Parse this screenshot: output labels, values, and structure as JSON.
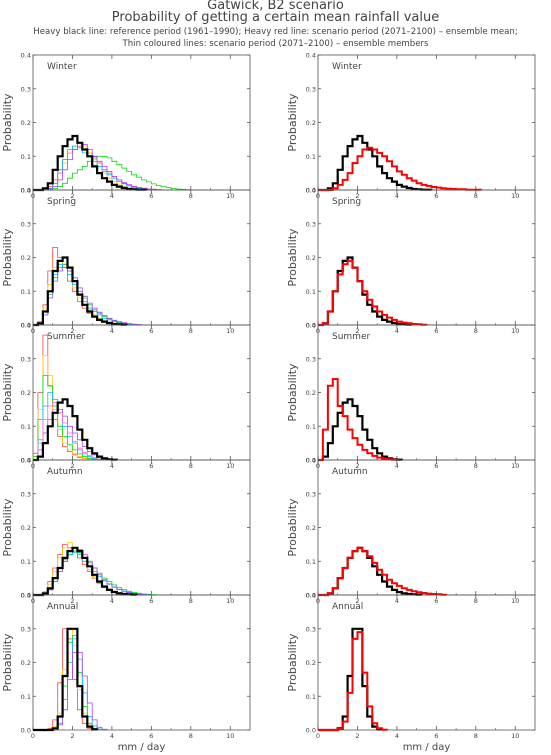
{
  "title": "Gatwick, B2 scenario",
  "subtitle": "Probability of getting a certain mean rainfall value",
  "legend_line1": "Heavy black line: reference period (1961–1990); Heavy red line: scenario period (2071–2100) – ensemble mean;",
  "legend_line2": "Thin coloured lines: scenario period (2071–2100) – ensemble members",
  "ylabel": "Probability",
  "xlabel": "mm / day",
  "colors": {
    "reference": "#000000",
    "ensemble_mean": "#ff0000",
    "members": [
      "#ff4040",
      "#ffcc00",
      "#00dd00",
      "#00bbff",
      "#aa44ff",
      "#ff66cc"
    ]
  },
  "chart_data": {
    "type": "step-histogram",
    "bin_width": 0.25,
    "x_start": 0,
    "xlim": [
      0,
      11
    ],
    "ylim": [
      0,
      0.4
    ],
    "xticks": [
      "0",
      "2",
      "4",
      "6",
      "8",
      "10"
    ],
    "yticks": [
      "0.0",
      "0.1",
      "0.2",
      "0.3",
      "0.4"
    ],
    "panels": [
      {
        "season": "Winter",
        "reference": [
          0,
          0,
          0.005,
          0.02,
          0.06,
          0.1,
          0.13,
          0.15,
          0.16,
          0.14,
          0.12,
          0.1,
          0.07,
          0.05,
          0.035,
          0.025,
          0.015,
          0.01,
          0.006,
          0.003,
          0.002,
          0.001,
          0.001
        ],
        "ensemble_mean": [
          0,
          0,
          0,
          0.005,
          0.015,
          0.03,
          0.05,
          0.08,
          0.1,
          0.12,
          0.125,
          0.12,
          0.11,
          0.1,
          0.085,
          0.07,
          0.055,
          0.045,
          0.035,
          0.028,
          0.02,
          0.015,
          0.012,
          0.009,
          0.007,
          0.005,
          0.004,
          0.003,
          0.002,
          0.002,
          0.001,
          0.001,
          0.001
        ],
        "members": [
          [
            0,
            0,
            0,
            0.01,
            0.03,
            0.06,
            0.09,
            0.11,
            0.12,
            0.13,
            0.12,
            0.11,
            0.1,
            0.08,
            0.06,
            0.05,
            0.04,
            0.03,
            0.02,
            0.015,
            0.01,
            0.007,
            0.005,
            0.003,
            0.002,
            0.001
          ],
          [
            0,
            0,
            0,
            0.005,
            0.02,
            0.05,
            0.08,
            0.11,
            0.13,
            0.14,
            0.13,
            0.11,
            0.09,
            0.07,
            0.05,
            0.035,
            0.025,
            0.015,
            0.01,
            0.006,
            0.004,
            0.002,
            0.001
          ],
          [
            0,
            0,
            0,
            0,
            0.005,
            0.01,
            0.02,
            0.035,
            0.05,
            0.06,
            0.07,
            0.085,
            0.095,
            0.1,
            0.1,
            0.095,
            0.085,
            0.075,
            0.065,
            0.055,
            0.045,
            0.038,
            0.03,
            0.024,
            0.018,
            0.013,
            0.01,
            0.007,
            0.005,
            0.003,
            0.002,
            0.001
          ],
          [
            0,
            0,
            0,
            0.005,
            0.02,
            0.05,
            0.09,
            0.12,
            0.13,
            0.125,
            0.11,
            0.1,
            0.085,
            0.07,
            0.055,
            0.045,
            0.035,
            0.025,
            0.018,
            0.012,
            0.008,
            0.005,
            0.003,
            0.002,
            0.001
          ],
          [
            0,
            0,
            0,
            0.003,
            0.01,
            0.03,
            0.06,
            0.09,
            0.12,
            0.14,
            0.135,
            0.12,
            0.1,
            0.085,
            0.07,
            0.055,
            0.04,
            0.03,
            0.022,
            0.016,
            0.011,
            0.007,
            0.005,
            0.003,
            0.002,
            0.001
          ]
        ]
      },
      {
        "season": "Spring",
        "reference": [
          0,
          0.005,
          0.04,
          0.1,
          0.16,
          0.19,
          0.2,
          0.17,
          0.13,
          0.09,
          0.06,
          0.04,
          0.025,
          0.015,
          0.01,
          0.006,
          0.003,
          0.002,
          0.001
        ],
        "ensemble_mean": [
          0,
          0.005,
          0.04,
          0.1,
          0.15,
          0.18,
          0.19,
          0.17,
          0.13,
          0.1,
          0.075,
          0.055,
          0.04,
          0.03,
          0.022,
          0.015,
          0.01,
          0.007,
          0.005,
          0.003,
          0.002,
          0.001
        ],
        "members": [
          [
            0,
            0.01,
            0.06,
            0.16,
            0.23,
            0.2,
            0.17,
            0.13,
            0.1,
            0.07,
            0.05,
            0.035,
            0.025,
            0.015,
            0.01,
            0.006,
            0.003,
            0.002,
            0.001
          ],
          [
            0,
            0.005,
            0.05,
            0.12,
            0.17,
            0.19,
            0.18,
            0.15,
            0.11,
            0.08,
            0.06,
            0.045,
            0.03,
            0.02,
            0.013,
            0.008,
            0.005,
            0.003,
            0.002,
            0.001
          ],
          [
            0,
            0.005,
            0.03,
            0.09,
            0.14,
            0.17,
            0.18,
            0.16,
            0.13,
            0.1,
            0.08,
            0.06,
            0.045,
            0.035,
            0.025,
            0.018,
            0.012,
            0.008,
            0.005,
            0.003,
            0.002,
            0.001
          ],
          [
            0,
            0.005,
            0.04,
            0.1,
            0.15,
            0.18,
            0.17,
            0.15,
            0.12,
            0.09,
            0.07,
            0.05,
            0.04,
            0.03,
            0.02,
            0.015,
            0.01,
            0.006,
            0.004,
            0.002,
            0.001
          ],
          [
            0,
            0.003,
            0.03,
            0.08,
            0.13,
            0.16,
            0.17,
            0.16,
            0.14,
            0.11,
            0.085,
            0.065,
            0.05,
            0.038,
            0.028,
            0.02,
            0.014,
            0.01,
            0.007,
            0.004,
            0.002,
            0.001
          ]
        ]
      },
      {
        "season": "Summer",
        "reference": [
          0,
          0.01,
          0.05,
          0.1,
          0.14,
          0.17,
          0.18,
          0.16,
          0.13,
          0.09,
          0.06,
          0.035,
          0.02,
          0.01,
          0.005,
          0.002,
          0.001
        ],
        "ensemble_mean": [
          0,
          0.09,
          0.22,
          0.24,
          0.16,
          0.13,
          0.09,
          0.065,
          0.045,
          0.03,
          0.02,
          0.012,
          0.007,
          0.004,
          0.002,
          0.001
        ],
        "members": [
          [
            0.02,
            0.2,
            0.37,
            0.22,
            0.12,
            0.07,
            0.04,
            0.025,
            0.015,
            0.008,
            0.004,
            0.002,
            0.001
          ],
          [
            0.01,
            0.15,
            0.31,
            0.25,
            0.15,
            0.09,
            0.05,
            0.03,
            0.018,
            0.01,
            0.005,
            0.002,
            0.001
          ],
          [
            0.01,
            0.12,
            0.25,
            0.22,
            0.16,
            0.1,
            0.07,
            0.045,
            0.03,
            0.018,
            0.01,
            0.005,
            0.002,
            0.001
          ],
          [
            0,
            0.06,
            0.16,
            0.2,
            0.18,
            0.14,
            0.1,
            0.07,
            0.05,
            0.03,
            0.018,
            0.01,
            0.005,
            0.002,
            0.001
          ],
          [
            0,
            0.03,
            0.08,
            0.12,
            0.14,
            0.15,
            0.13,
            0.1,
            0.08,
            0.06,
            0.04,
            0.025,
            0.015,
            0.008,
            0.004,
            0.002,
            0.001
          ],
          [
            0,
            0.05,
            0.12,
            0.16,
            0.17,
            0.14,
            0.11,
            0.08,
            0.055,
            0.035,
            0.022,
            0.013,
            0.007,
            0.003,
            0.001
          ]
        ]
      },
      {
        "season": "Autumn",
        "reference": [
          0,
          0,
          0.005,
          0.02,
          0.05,
          0.08,
          0.11,
          0.13,
          0.14,
          0.13,
          0.11,
          0.085,
          0.06,
          0.04,
          0.025,
          0.015,
          0.009,
          0.005,
          0.003,
          0.002,
          0.001
        ],
        "ensemble_mean": [
          0,
          0,
          0.005,
          0.02,
          0.05,
          0.08,
          0.11,
          0.13,
          0.14,
          0.13,
          0.115,
          0.095,
          0.075,
          0.06,
          0.045,
          0.035,
          0.027,
          0.02,
          0.015,
          0.011,
          0.008,
          0.006,
          0.004,
          0.003,
          0.002,
          0.001
        ],
        "members": [
          [
            0,
            0,
            0.01,
            0.04,
            0.08,
            0.12,
            0.15,
            0.14,
            0.13,
            0.11,
            0.09,
            0.07,
            0.05,
            0.035,
            0.025,
            0.017,
            0.011,
            0.007,
            0.004,
            0.002,
            0.001
          ],
          [
            0,
            0,
            0.01,
            0.03,
            0.07,
            0.11,
            0.14,
            0.155,
            0.14,
            0.12,
            0.1,
            0.075,
            0.055,
            0.04,
            0.028,
            0.018,
            0.011,
            0.006,
            0.003,
            0.002,
            0.001
          ],
          [
            0,
            0,
            0.003,
            0.015,
            0.04,
            0.07,
            0.1,
            0.12,
            0.13,
            0.125,
            0.11,
            0.095,
            0.08,
            0.065,
            0.05,
            0.04,
            0.03,
            0.022,
            0.016,
            0.011,
            0.008,
            0.005,
            0.003,
            0.002,
            0.001
          ],
          [
            0,
            0,
            0.005,
            0.02,
            0.05,
            0.08,
            0.105,
            0.12,
            0.125,
            0.12,
            0.1,
            0.085,
            0.07,
            0.055,
            0.042,
            0.032,
            0.024,
            0.017,
            0.012,
            0.008,
            0.005,
            0.003,
            0.002,
            0.001
          ],
          [
            0,
            0,
            0.003,
            0.015,
            0.04,
            0.07,
            0.1,
            0.13,
            0.14,
            0.135,
            0.12,
            0.1,
            0.08,
            0.06,
            0.045,
            0.033,
            0.023,
            0.016,
            0.011,
            0.007,
            0.004,
            0.002,
            0.001
          ]
        ]
      },
      {
        "season": "Annual",
        "reference": [
          0,
          0,
          0,
          0,
          0.005,
          0.04,
          0.16,
          0.3,
          0.3,
          0.13,
          0.04,
          0.01,
          0.002
        ],
        "ensemble_mean": [
          0,
          0,
          0,
          0,
          0.003,
          0.025,
          0.11,
          0.27,
          0.29,
          0.17,
          0.07,
          0.02,
          0.005,
          0.001
        ],
        "members": [
          [
            0,
            0,
            0,
            0.005,
            0.03,
            0.14,
            0.3,
            0.27,
            0.15,
            0.06,
            0.02,
            0.005,
            0.001
          ],
          [
            0,
            0,
            0,
            0,
            0.01,
            0.05,
            0.18,
            0.3,
            0.25,
            0.12,
            0.05,
            0.015,
            0.003
          ],
          [
            0,
            0,
            0,
            0,
            0.005,
            0.04,
            0.13,
            0.26,
            0.28,
            0.17,
            0.07,
            0.02,
            0.005,
            0.001
          ],
          [
            0,
            0,
            0,
            0,
            0.003,
            0.02,
            0.09,
            0.2,
            0.27,
            0.21,
            0.11,
            0.04,
            0.012,
            0.003
          ],
          [
            0,
            0,
            0,
            0,
            0.002,
            0.015,
            0.06,
            0.15,
            0.23,
            0.23,
            0.16,
            0.08,
            0.03,
            0.008,
            0.002
          ]
        ]
      }
    ]
  }
}
